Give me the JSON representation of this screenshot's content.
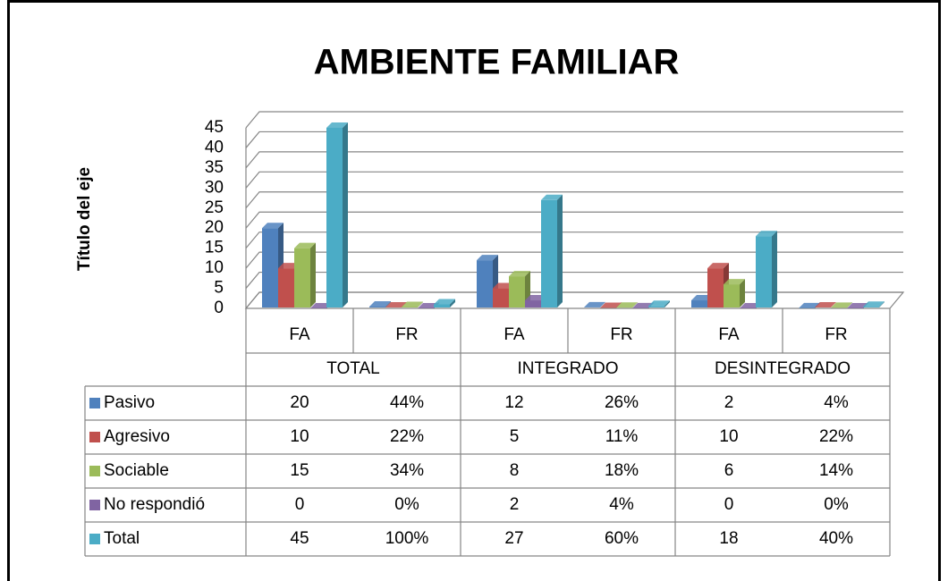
{
  "chart_data": {
    "type": "bar3d",
    "title": "AMBIENTE FAMILIAR",
    "y_label": "Título del eje",
    "categories": [
      "FA",
      "FR",
      "FA",
      "FR",
      "FA",
      "FR"
    ],
    "groups": [
      "TOTAL",
      "INTEGRADO",
      "DESINTEGRADO"
    ],
    "ylim": [
      0,
      45
    ],
    "yticks": [
      0,
      5,
      10,
      15,
      20,
      25,
      30,
      35,
      40,
      45
    ],
    "grid": true,
    "series": [
      {
        "name": "Pasivo",
        "color": "#4f81bd",
        "values": [
          20,
          0.44,
          12,
          0.26,
          2,
          0.04
        ],
        "value_labels": [
          "20",
          "44%",
          "12",
          "26%",
          "2",
          "4%"
        ]
      },
      {
        "name": "Agresivo",
        "color": "#c0504d",
        "values": [
          10,
          0.22,
          5,
          0.11,
          10,
          0.22
        ],
        "value_labels": [
          "10",
          "22%",
          "5",
          "11%",
          "10",
          "22%"
        ]
      },
      {
        "name": "Sociable",
        "color": "#9bbb59",
        "values": [
          15,
          0.34,
          8,
          0.18,
          6,
          0.14
        ],
        "value_labels": [
          "15",
          "34%",
          "8",
          "18%",
          "6",
          "14%"
        ]
      },
      {
        "name": "No respondió",
        "color": "#8064a2",
        "values": [
          0,
          0,
          2,
          0.04,
          0,
          0
        ],
        "value_labels": [
          "0",
          "0%",
          "2",
          "4%",
          "0",
          "0%"
        ]
      },
      {
        "name": "Total",
        "color": "#4bacc6",
        "values": [
          45,
          1,
          27,
          0.6,
          18,
          0.4
        ],
        "value_labels": [
          "45",
          "100%",
          "27",
          "60%",
          "18",
          "40%"
        ]
      }
    ]
  }
}
